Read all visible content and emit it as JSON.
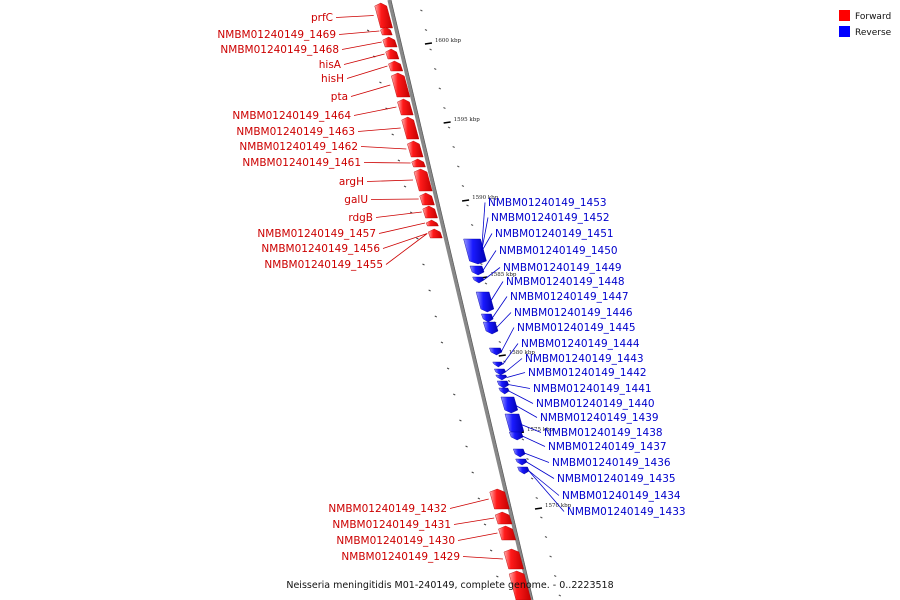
{
  "caption": "Neisseria meningitidis M01-240149, complete genome. - 0..2223518",
  "legend": [
    {
      "label": "Forward",
      "color": "#ff0000"
    },
    {
      "label": "Reverse",
      "color": "#0000ff"
    }
  ],
  "scale_ticks": [
    "1600 kbp",
    "1595 kbp",
    "1590 kbp",
    "1585 kbp",
    "1580 kbp",
    "1575 kbp",
    "1570 kbp"
  ],
  "forward_genes_top": [
    "prfC",
    "NMBM01240149_1469",
    "NMBM01240149_1468",
    "hisA",
    "hisH",
    "pta",
    "NMBM01240149_1464",
    "NMBM01240149_1463",
    "NMBM01240149_1462",
    "NMBM01240149_1461",
    "argH",
    "galU",
    "rdgB",
    "NMBM01240149_1457",
    "NMBM01240149_1456",
    "NMBM01240149_1455"
  ],
  "reverse_genes": [
    "NMBM01240149_1453",
    "NMBM01240149_1452",
    "NMBM01240149_1451",
    "NMBM01240149_1450",
    "NMBM01240149_1449",
    "NMBM01240149_1448",
    "NMBM01240149_1447",
    "NMBM01240149_1446",
    "NMBM01240149_1445",
    "NMBM01240149_1444",
    "NMBM01240149_1443",
    "NMBM01240149_1442",
    "NMBM01240149_1441",
    "NMBM01240149_1440",
    "NMBM01240149_1439",
    "NMBM01240149_1438",
    "NMBM01240149_1437",
    "NMBM01240149_1436",
    "NMBM01240149_1435",
    "NMBM01240149_1434",
    "NMBM01240149_1433"
  ],
  "forward_genes_bottom": [
    "NMBM01240149_1432",
    "NMBM01240149_1431",
    "NMBM01240149_1430",
    "NMBM01240149_1429"
  ],
  "colors": {
    "forward": "#ff0000",
    "reverse": "#0000ff",
    "backbone": "#888888"
  }
}
